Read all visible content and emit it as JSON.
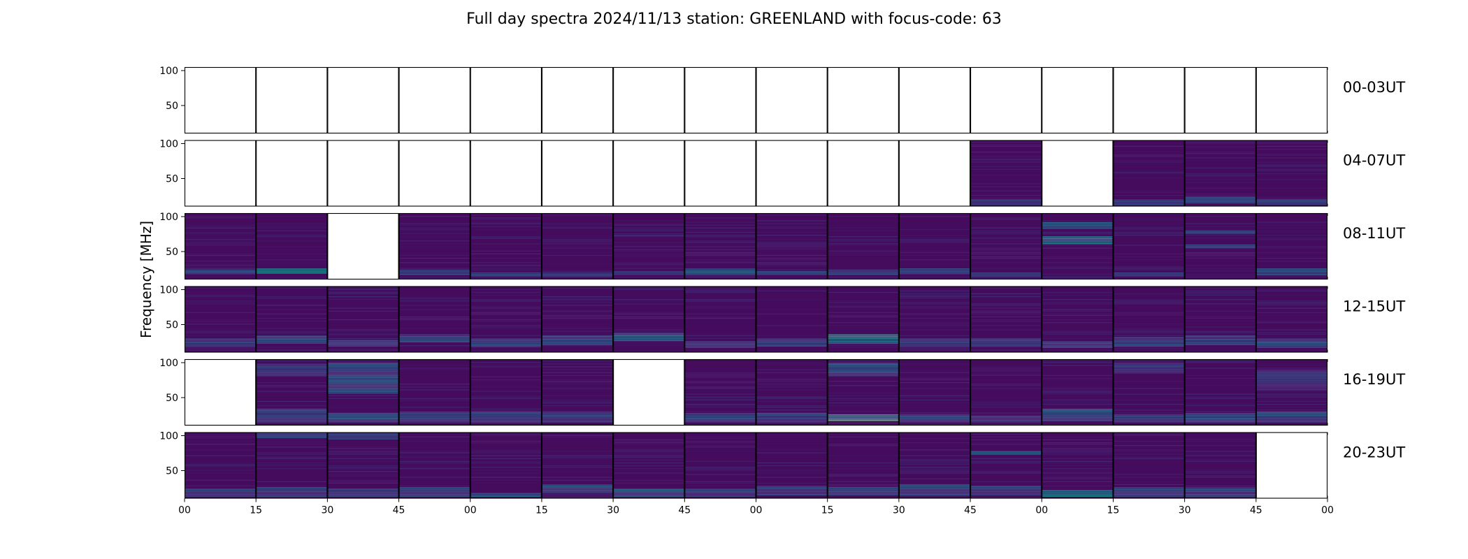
{
  "chart_data": {
    "type": "heatmap",
    "title": "Full day spectra 2024/11/13 station: GREENLAND with focus-code: 63",
    "ylabel": "Frequency [MHz]",
    "y_ticks": [
      "100",
      "50"
    ],
    "y_tick_values": [
      100,
      50
    ],
    "ylim": [
      10,
      105
    ],
    "x_ticks": [
      "00",
      "15",
      "30",
      "45",
      "00",
      "15",
      "30",
      "45",
      "00",
      "15",
      "30",
      "45",
      "00",
      "15",
      "30",
      "45",
      "00"
    ],
    "panels_per_row": 16,
    "panel_duration_minutes": 15,
    "colormap": "viridis",
    "background_color": "#ffffff",
    "rows": [
      {
        "label": "00-03UT",
        "panels": [
          {
            "has_data": false
          },
          {
            "has_data": false
          },
          {
            "has_data": false
          },
          {
            "has_data": false
          },
          {
            "has_data": false
          },
          {
            "has_data": false
          },
          {
            "has_data": false
          },
          {
            "has_data": false
          },
          {
            "has_data": false
          },
          {
            "has_data": false
          },
          {
            "has_data": false
          },
          {
            "has_data": false
          },
          {
            "has_data": false
          },
          {
            "has_data": false
          },
          {
            "has_data": false
          },
          {
            "has_data": false
          }
        ]
      },
      {
        "label": "04-07UT",
        "panels": [
          {
            "has_data": false
          },
          {
            "has_data": false
          },
          {
            "has_data": false
          },
          {
            "has_data": false
          },
          {
            "has_data": false
          },
          {
            "has_data": false
          },
          {
            "has_data": false
          },
          {
            "has_data": false
          },
          {
            "has_data": false
          },
          {
            "has_data": false
          },
          {
            "has_data": false
          },
          {
            "has_data": true,
            "bands": [
              [
                12,
                20,
                0.18
              ]
            ]
          },
          {
            "has_data": false
          },
          {
            "has_data": true,
            "bands": [
              [
                12,
                20,
                0.18
              ]
            ]
          },
          {
            "has_data": true,
            "bands": [
              [
                14,
                24,
                0.22
              ]
            ]
          },
          {
            "has_data": true,
            "bands": [
              [
                12,
                20,
                0.2
              ]
            ]
          }
        ]
      },
      {
        "label": "08-11UT",
        "panels": [
          {
            "has_data": true,
            "bands": [
              [
                18,
                24,
                0.22
              ]
            ]
          },
          {
            "has_data": true,
            "bands": [
              [
                18,
                26,
                0.6
              ]
            ]
          },
          {
            "has_data": false
          },
          {
            "has_data": true,
            "bands": [
              [
                16,
                24,
                0.22
              ]
            ]
          },
          {
            "has_data": true,
            "bands": [
              [
                14,
                20,
                0.2
              ]
            ]
          },
          {
            "has_data": true,
            "bands": [
              [
                14,
                20,
                0.18
              ]
            ]
          },
          {
            "has_data": true,
            "bands": [
              [
                16,
                22,
                0.18
              ],
              [
                72,
                74,
                0.12
              ]
            ]
          },
          {
            "has_data": true,
            "bands": [
              [
                16,
                26,
                0.3
              ]
            ]
          },
          {
            "has_data": true,
            "bands": [
              [
                16,
                22,
                0.22
              ]
            ]
          },
          {
            "has_data": true,
            "bands": [
              [
                16,
                24,
                0.2
              ]
            ]
          },
          {
            "has_data": true,
            "bands": [
              [
                18,
                26,
                0.25
              ]
            ]
          },
          {
            "has_data": true,
            "bands": [
              [
                14,
                20,
                0.15
              ]
            ]
          },
          {
            "has_data": true,
            "bands": [
              [
                60,
                72,
                0.45
              ],
              [
                82,
                92,
                0.3
              ]
            ]
          },
          {
            "has_data": true,
            "bands": [
              [
                14,
                20,
                0.15
              ]
            ]
          },
          {
            "has_data": true,
            "bands": [
              [
                55,
                60,
                0.25
              ],
              [
                75,
                80,
                0.2
              ]
            ]
          },
          {
            "has_data": true,
            "bands": [
              [
                16,
                26,
                0.25
              ]
            ]
          }
        ]
      },
      {
        "label": "12-15UT",
        "panels": [
          {
            "has_data": true,
            "bands": [
              [
                18,
                30,
                0.22
              ]
            ]
          },
          {
            "has_data": true,
            "bands": [
              [
                22,
                34,
                0.28
              ]
            ]
          },
          {
            "has_data": true,
            "bands": [
              [
                18,
                28,
                0.22
              ]
            ]
          },
          {
            "has_data": true,
            "bands": [
              [
                24,
                36,
                0.3
              ]
            ]
          },
          {
            "has_data": true,
            "bands": [
              [
                18,
                30,
                0.25
              ]
            ]
          },
          {
            "has_data": true,
            "bands": [
              [
                20,
                34,
                0.3
              ]
            ]
          },
          {
            "has_data": true,
            "bands": [
              [
                26,
                38,
                0.38
              ]
            ]
          },
          {
            "has_data": true,
            "bands": [
              [
                16,
                26,
                0.22
              ]
            ]
          },
          {
            "has_data": true,
            "bands": [
              [
                18,
                30,
                0.25
              ]
            ]
          },
          {
            "has_data": true,
            "bands": [
              [
                22,
                36,
                0.55
              ]
            ]
          },
          {
            "has_data": true,
            "bands": [
              [
                18,
                30,
                0.22
              ]
            ]
          },
          {
            "has_data": true,
            "bands": [
              [
                18,
                30,
                0.22
              ]
            ]
          },
          {
            "has_data": true,
            "bands": [
              [
                16,
                26,
                0.28
              ]
            ]
          },
          {
            "has_data": true,
            "bands": [
              [
                18,
                32,
                0.25
              ]
            ]
          },
          {
            "has_data": true,
            "bands": [
              [
                20,
                34,
                0.25
              ]
            ]
          },
          {
            "has_data": true,
            "bands": [
              [
                16,
                30,
                0.3
              ]
            ]
          }
        ]
      },
      {
        "label": "16-19UT",
        "panels": [
          {
            "has_data": false
          },
          {
            "has_data": true,
            "bands": [
              [
                14,
                34,
                0.22
              ],
              [
                80,
                98,
                0.18
              ]
            ]
          },
          {
            "has_data": true,
            "bands": [
              [
                14,
                28,
                0.28
              ],
              [
                55,
                100,
                0.3
              ]
            ]
          },
          {
            "has_data": true,
            "bands": [
              [
                14,
                30,
                0.26
              ]
            ]
          },
          {
            "has_data": true,
            "bands": [
              [
                14,
                30,
                0.22
              ]
            ]
          },
          {
            "has_data": true,
            "bands": [
              [
                14,
                30,
                0.2
              ]
            ]
          },
          {
            "has_data": false
          },
          {
            "has_data": true,
            "bands": [
              [
                14,
                28,
                0.22
              ]
            ]
          },
          {
            "has_data": true,
            "bands": [
              [
                14,
                28,
                0.2
              ]
            ]
          },
          {
            "has_data": true,
            "bands": [
              [
                16,
                26,
                0.7
              ],
              [
                80,
                100,
                0.3
              ]
            ]
          },
          {
            "has_data": true,
            "bands": [
              [
                14,
                26,
                0.25
              ]
            ]
          },
          {
            "has_data": true,
            "bands": [
              [
                14,
                24,
                0.2
              ]
            ]
          },
          {
            "has_data": true,
            "bands": [
              [
                16,
                34,
                0.35
              ]
            ]
          },
          {
            "has_data": true,
            "bands": [
              [
                14,
                26,
                0.22
              ],
              [
                84,
                100,
                0.15
              ]
            ]
          },
          {
            "has_data": true,
            "bands": [
              [
                14,
                28,
                0.25
              ]
            ]
          },
          {
            "has_data": true,
            "bands": [
              [
                14,
                30,
                0.3
              ],
              [
                60,
                90,
                0.14
              ]
            ]
          }
        ]
      },
      {
        "label": "20-23UT",
        "panels": [
          {
            "has_data": true,
            "bands": [
              [
                12,
                24,
                0.25
              ]
            ]
          },
          {
            "has_data": true,
            "bands": [
              [
                12,
                26,
                0.22
              ],
              [
                96,
                104,
                0.2
              ]
            ]
          },
          {
            "has_data": true,
            "bands": [
              [
                12,
                24,
                0.22
              ],
              [
                94,
                104,
                0.2
              ]
            ]
          },
          {
            "has_data": true,
            "bands": [
              [
                12,
                26,
                0.22
              ]
            ]
          },
          {
            "has_data": true,
            "bands": [
              [
                12,
                18,
                0.35
              ]
            ]
          },
          {
            "has_data": true,
            "bands": [
              [
                18,
                30,
                0.28
              ]
            ]
          },
          {
            "has_data": true,
            "bands": [
              [
                12,
                24,
                0.3
              ]
            ]
          },
          {
            "has_data": true,
            "bands": [
              [
                12,
                24,
                0.22
              ]
            ]
          },
          {
            "has_data": true,
            "bands": [
              [
                14,
                28,
                0.22
              ]
            ]
          },
          {
            "has_data": true,
            "bands": [
              [
                14,
                26,
                0.25
              ]
            ]
          },
          {
            "has_data": true,
            "bands": [
              [
                14,
                30,
                0.25
              ]
            ]
          },
          {
            "has_data": true,
            "bands": [
              [
                14,
                28,
                0.25
              ],
              [
                72,
                78,
                0.3
              ]
            ]
          },
          {
            "has_data": true,
            "bands": [
              [
                12,
                22,
                0.5
              ]
            ]
          },
          {
            "has_data": true,
            "bands": [
              [
                12,
                26,
                0.28
              ]
            ]
          },
          {
            "has_data": true,
            "bands": [
              [
                12,
                26,
                0.25
              ]
            ]
          },
          {
            "has_data": false
          }
        ]
      }
    ]
  }
}
